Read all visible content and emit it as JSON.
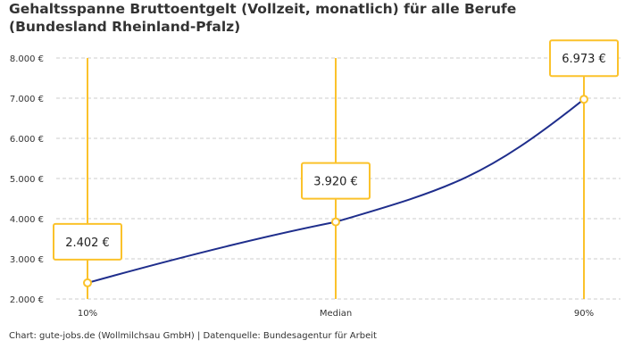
{
  "chart_data": {
    "type": "line",
    "title": "Gehaltsspanne Bruttoentgelt (Vollzeit, monatlich) für alle Berufe (Bundesland Rheinland-Pfalz)",
    "categories": [
      "10%",
      "Median",
      "90%"
    ],
    "values": [
      2402,
      3920,
      6973
    ],
    "value_labels": [
      "2.402 €",
      "3.920 €",
      "6.973 €"
    ],
    "y_ticks": [
      2000,
      3000,
      4000,
      5000,
      6000,
      7000,
      8000
    ],
    "y_tick_labels": [
      "2.000 €",
      "3.000 €",
      "4.000 €",
      "5.000 €",
      "6.000 €",
      "7.000 €",
      "8.000 €"
    ],
    "ylim": [
      2000,
      8000
    ],
    "grid": "horizontal dashed",
    "colors": {
      "line": "#1f2e8c",
      "marker": "#fbc22b",
      "grid": "#cccccc"
    }
  },
  "credit": "Chart: gute-jobs.de (Wollmilchsau GmbH) | Datenquelle: Bundesagentur für Arbeit"
}
